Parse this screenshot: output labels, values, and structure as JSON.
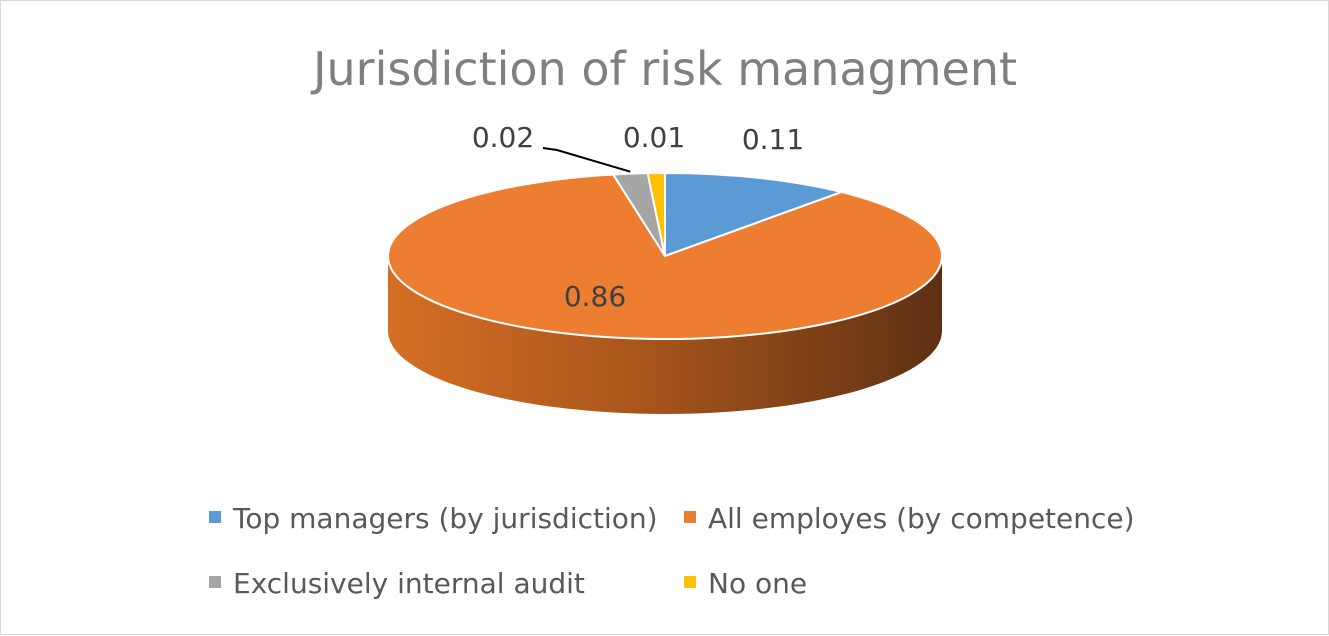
{
  "chart_data": {
    "type": "pie",
    "title": "Jurisdiction of risk managment",
    "categories": [
      "Top managers (by jurisdiction)",
      "All employes (by competence)",
      "Exclusively internal audit",
      "No one"
    ],
    "values": [
      0.11,
      0.86,
      0.02,
      0.01
    ],
    "data_labels": [
      "0.11",
      "0.86",
      "0.02",
      "0.01"
    ],
    "colors": [
      "#5b9bd5",
      "#ed7d31",
      "#a5a5a5",
      "#ffc000"
    ],
    "style": "3d",
    "legend": "bottom"
  }
}
